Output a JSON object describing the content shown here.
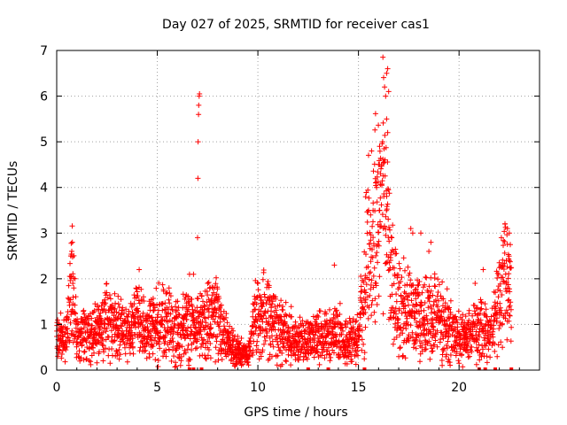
{
  "chart_data": {
    "type": "scatter",
    "title": "Day 027 of 2025, SRMTID for receiver cas1",
    "xlabel": "GPS time / hours",
    "ylabel": "SRMTID / TECUs",
    "xlim": [
      0,
      24
    ],
    "ylim": [
      0,
      7
    ],
    "xticks": [
      0,
      5,
      10,
      15,
      20
    ],
    "yticks": [
      0,
      1,
      2,
      3,
      4,
      5,
      6,
      7
    ],
    "grid": true,
    "marker": "+",
    "series": [
      {
        "name": "SRMTID",
        "color": "#ff0000",
        "trend": [
          [
            0.0,
            0.65
          ],
          [
            0.5,
            0.75
          ],
          [
            0.7,
            1.6
          ],
          [
            0.8,
            2.0
          ],
          [
            1.0,
            0.8
          ],
          [
            1.5,
            0.7
          ],
          [
            2.0,
            0.9
          ],
          [
            2.5,
            1.1
          ],
          [
            3.0,
            1.0
          ],
          [
            3.5,
            0.8
          ],
          [
            4.0,
            1.1
          ],
          [
            4.5,
            0.8
          ],
          [
            5.0,
            1.0
          ],
          [
            5.5,
            1.0
          ],
          [
            6.0,
            0.8
          ],
          [
            6.5,
            1.1
          ],
          [
            7.0,
            0.9
          ],
          [
            7.5,
            1.1
          ],
          [
            8.0,
            1.2
          ],
          [
            8.5,
            0.6
          ],
          [
            9.0,
            0.4
          ],
          [
            9.5,
            0.35
          ],
          [
            10.0,
            1.3
          ],
          [
            10.5,
            1.2
          ],
          [
            11.0,
            0.9
          ],
          [
            11.5,
            0.8
          ],
          [
            12.0,
            0.7
          ],
          [
            12.5,
            0.6
          ],
          [
            13.0,
            0.7
          ],
          [
            13.5,
            0.8
          ],
          [
            14.0,
            0.8
          ],
          [
            14.5,
            0.6
          ],
          [
            15.0,
            0.8
          ],
          [
            15.3,
            1.8
          ],
          [
            15.5,
            2.6
          ],
          [
            15.8,
            3.0
          ],
          [
            16.0,
            3.4
          ],
          [
            16.2,
            3.6
          ],
          [
            16.4,
            3.2
          ],
          [
            16.6,
            2.0
          ],
          [
            17.0,
            1.4
          ],
          [
            17.5,
            1.3
          ],
          [
            18.0,
            1.1
          ],
          [
            18.5,
            1.2
          ],
          [
            19.0,
            1.2
          ],
          [
            19.5,
            0.9
          ],
          [
            20.0,
            0.7
          ],
          [
            20.5,
            0.7
          ],
          [
            21.0,
            1.0
          ],
          [
            21.5,
            0.7
          ],
          [
            22.0,
            1.6
          ],
          [
            22.3,
            2.1
          ],
          [
            22.6,
            1.4
          ]
        ],
        "peaks": [
          [
            0.7,
            2.5
          ],
          [
            0.75,
            2.6
          ],
          [
            0.78,
            2.8
          ],
          [
            0.8,
            1.9
          ],
          [
            0.85,
            1.8
          ],
          [
            4.1,
            2.2
          ],
          [
            6.6,
            2.1
          ],
          [
            6.8,
            2.1
          ],
          [
            7.0,
            2.9
          ],
          [
            7.02,
            4.2
          ],
          [
            7.03,
            5.0
          ],
          [
            7.05,
            5.6
          ],
          [
            7.06,
            5.8
          ],
          [
            7.08,
            6.0
          ],
          [
            7.1,
            6.05
          ],
          [
            10.0,
            1.9
          ],
          [
            13.8,
            2.3
          ],
          [
            15.5,
            3.5
          ],
          [
            15.6,
            3.4
          ],
          [
            15.9,
            4.0
          ],
          [
            16.0,
            4.5
          ],
          [
            16.05,
            4.9
          ],
          [
            16.1,
            4.3
          ],
          [
            16.2,
            5.0
          ],
          [
            16.3,
            6.2
          ],
          [
            16.35,
            6.0
          ],
          [
            16.4,
            6.5
          ],
          [
            16.45,
            6.6
          ],
          [
            16.5,
            6.1
          ],
          [
            16.4,
            5.5
          ],
          [
            16.45,
            5.2
          ],
          [
            17.6,
            3.1
          ],
          [
            17.7,
            3.0
          ],
          [
            18.1,
            3.0
          ],
          [
            18.5,
            2.6
          ],
          [
            18.6,
            2.8
          ],
          [
            20.8,
            1.9
          ],
          [
            21.2,
            2.2
          ],
          [
            22.1,
            2.9
          ],
          [
            22.4,
            3.1
          ],
          [
            22.5,
            3.0
          ],
          [
            22.5,
            2.4
          ]
        ],
        "zero_markers": [
          6.6,
          6.8,
          7.2,
          12.5,
          13.5,
          15.3,
          21.0,
          21.3,
          21.8,
          22.6
        ]
      }
    ]
  }
}
